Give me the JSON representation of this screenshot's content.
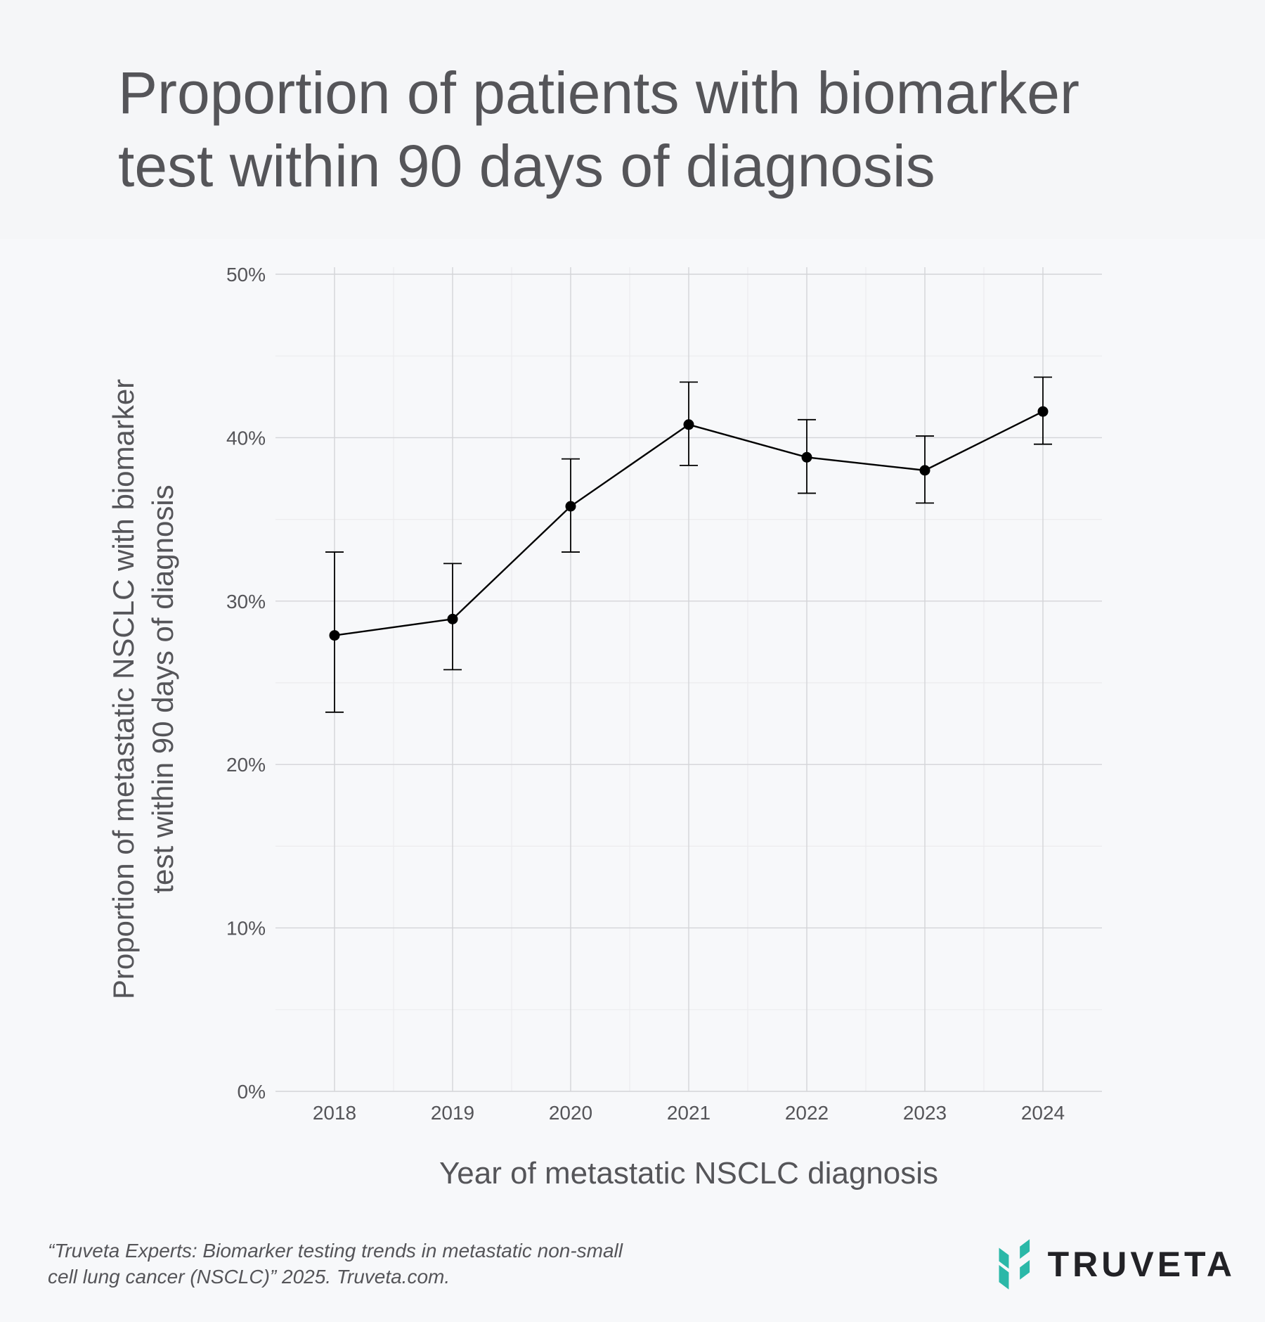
{
  "chart_data": {
    "type": "line",
    "title": "Proportion of patients with biomarker test within 90 days of diagnosis",
    "xlabel": "Year of metastatic NSCLC diagnosis",
    "ylabel_lines": [
      "Proportion of metastatic NSCLC with biomarker",
      "test within 90 days of diagnosis"
    ],
    "categories": [
      "2018",
      "2019",
      "2020",
      "2021",
      "2022",
      "2023",
      "2024"
    ],
    "values": [
      27.9,
      28.9,
      35.8,
      40.8,
      38.8,
      38.0,
      41.6
    ],
    "error_low": [
      23.2,
      25.8,
      33.0,
      38.3,
      36.6,
      36.0,
      39.6
    ],
    "error_high": [
      33.0,
      32.3,
      38.7,
      43.4,
      41.1,
      40.1,
      43.7
    ],
    "ylim": [
      0,
      50
    ],
    "yticks": [
      0,
      10,
      20,
      30,
      40,
      50
    ],
    "ytick_labels": [
      "0%",
      "10%",
      "20%",
      "30%",
      "40%",
      "50%"
    ],
    "grid": true,
    "line_color": "#000000"
  },
  "citation_lines": [
    "“Truveta Experts: Biomarker testing trends in metastatic non-small",
    "cell lung cancer (NSCLC)” 2025. Truveta.com."
  ],
  "logo": {
    "text": "TRUVETA",
    "color": "#2bb8a8",
    "icon": "truveta-logo-icon"
  }
}
